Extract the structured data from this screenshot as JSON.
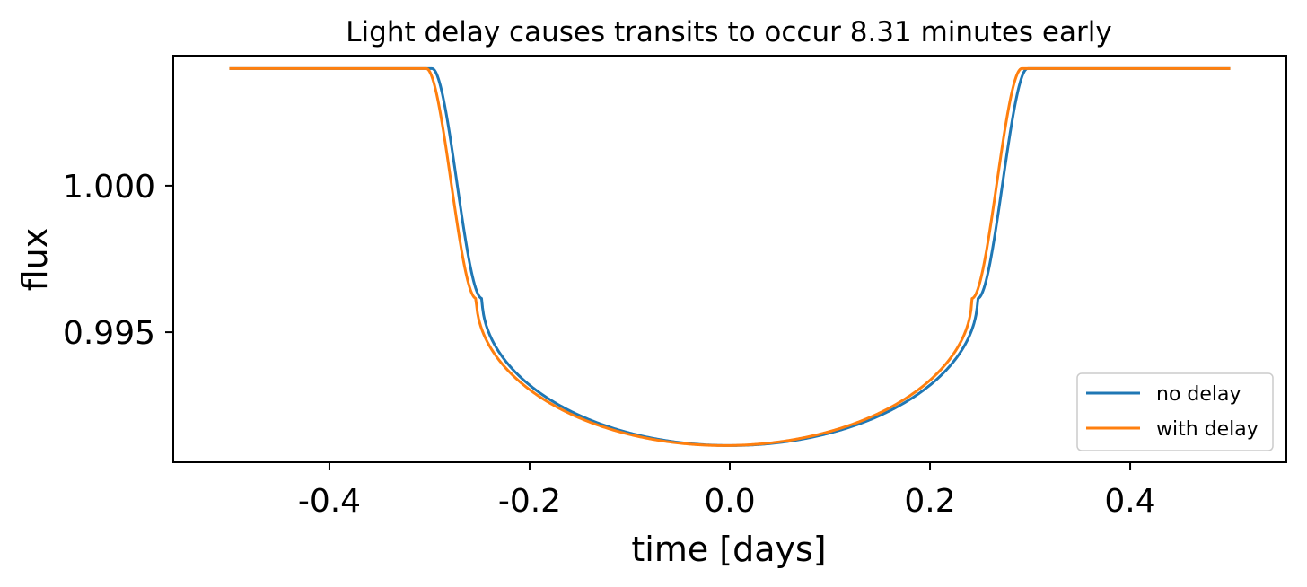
{
  "chart_data": {
    "type": "line",
    "title": "Light delay causes transits to occur 8.31 minutes early",
    "xlabel": "time [days]",
    "ylabel": "flux",
    "xlim": [
      -0.556,
      0.556
    ],
    "ylim": [
      0.99056,
      1.00444
    ],
    "x_ticks": [
      -0.4,
      -0.2,
      0.0,
      0.2,
      0.4
    ],
    "x_tick_labels": [
      "-0.4",
      "-0.2",
      "0.0",
      "0.2",
      "0.4"
    ],
    "y_ticks": [
      0.995,
      1.0
    ],
    "y_tick_labels": [
      "0.995",
      "1.000"
    ],
    "grid": false,
    "legend_position": "lower right",
    "transit_model": {
      "baseline_flux": 1.004,
      "min_flux": 0.99113,
      "ingress_end_flux": 0.99615,
      "contact1_half_duration": 0.2975,
      "contact2_half_duration": 0.2475
    },
    "series": [
      {
        "name": "no delay",
        "color": "#1f77b4",
        "shift_days": 0.0
      },
      {
        "name": "with delay",
        "color": "#ff7f0e",
        "shift_days": -0.00577
      }
    ],
    "x_range": [
      -0.5,
      0.5
    ]
  }
}
